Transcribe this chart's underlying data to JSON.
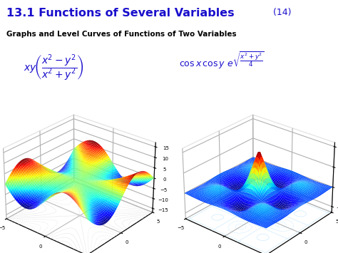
{
  "title_main": "13.1 Functions of Several Variables",
  "title_number": " (14)",
  "subtitle": "Graphs and Level Curves of Functions of Two Variables",
  "title_color": "#1a0fcc",
  "title_fontsize": 11.5,
  "subtitle_fontsize": 7.5,
  "formula_color": "#1a0fcc",
  "bg_color": "#ffffff",
  "plot1_colormap": "jet",
  "plot2_colormap": "jet",
  "grid_range": [
    -5,
    5
  ],
  "grid_points": 60,
  "elev1": 28,
  "azim1": -50,
  "elev2": 28,
  "azim2": -50
}
